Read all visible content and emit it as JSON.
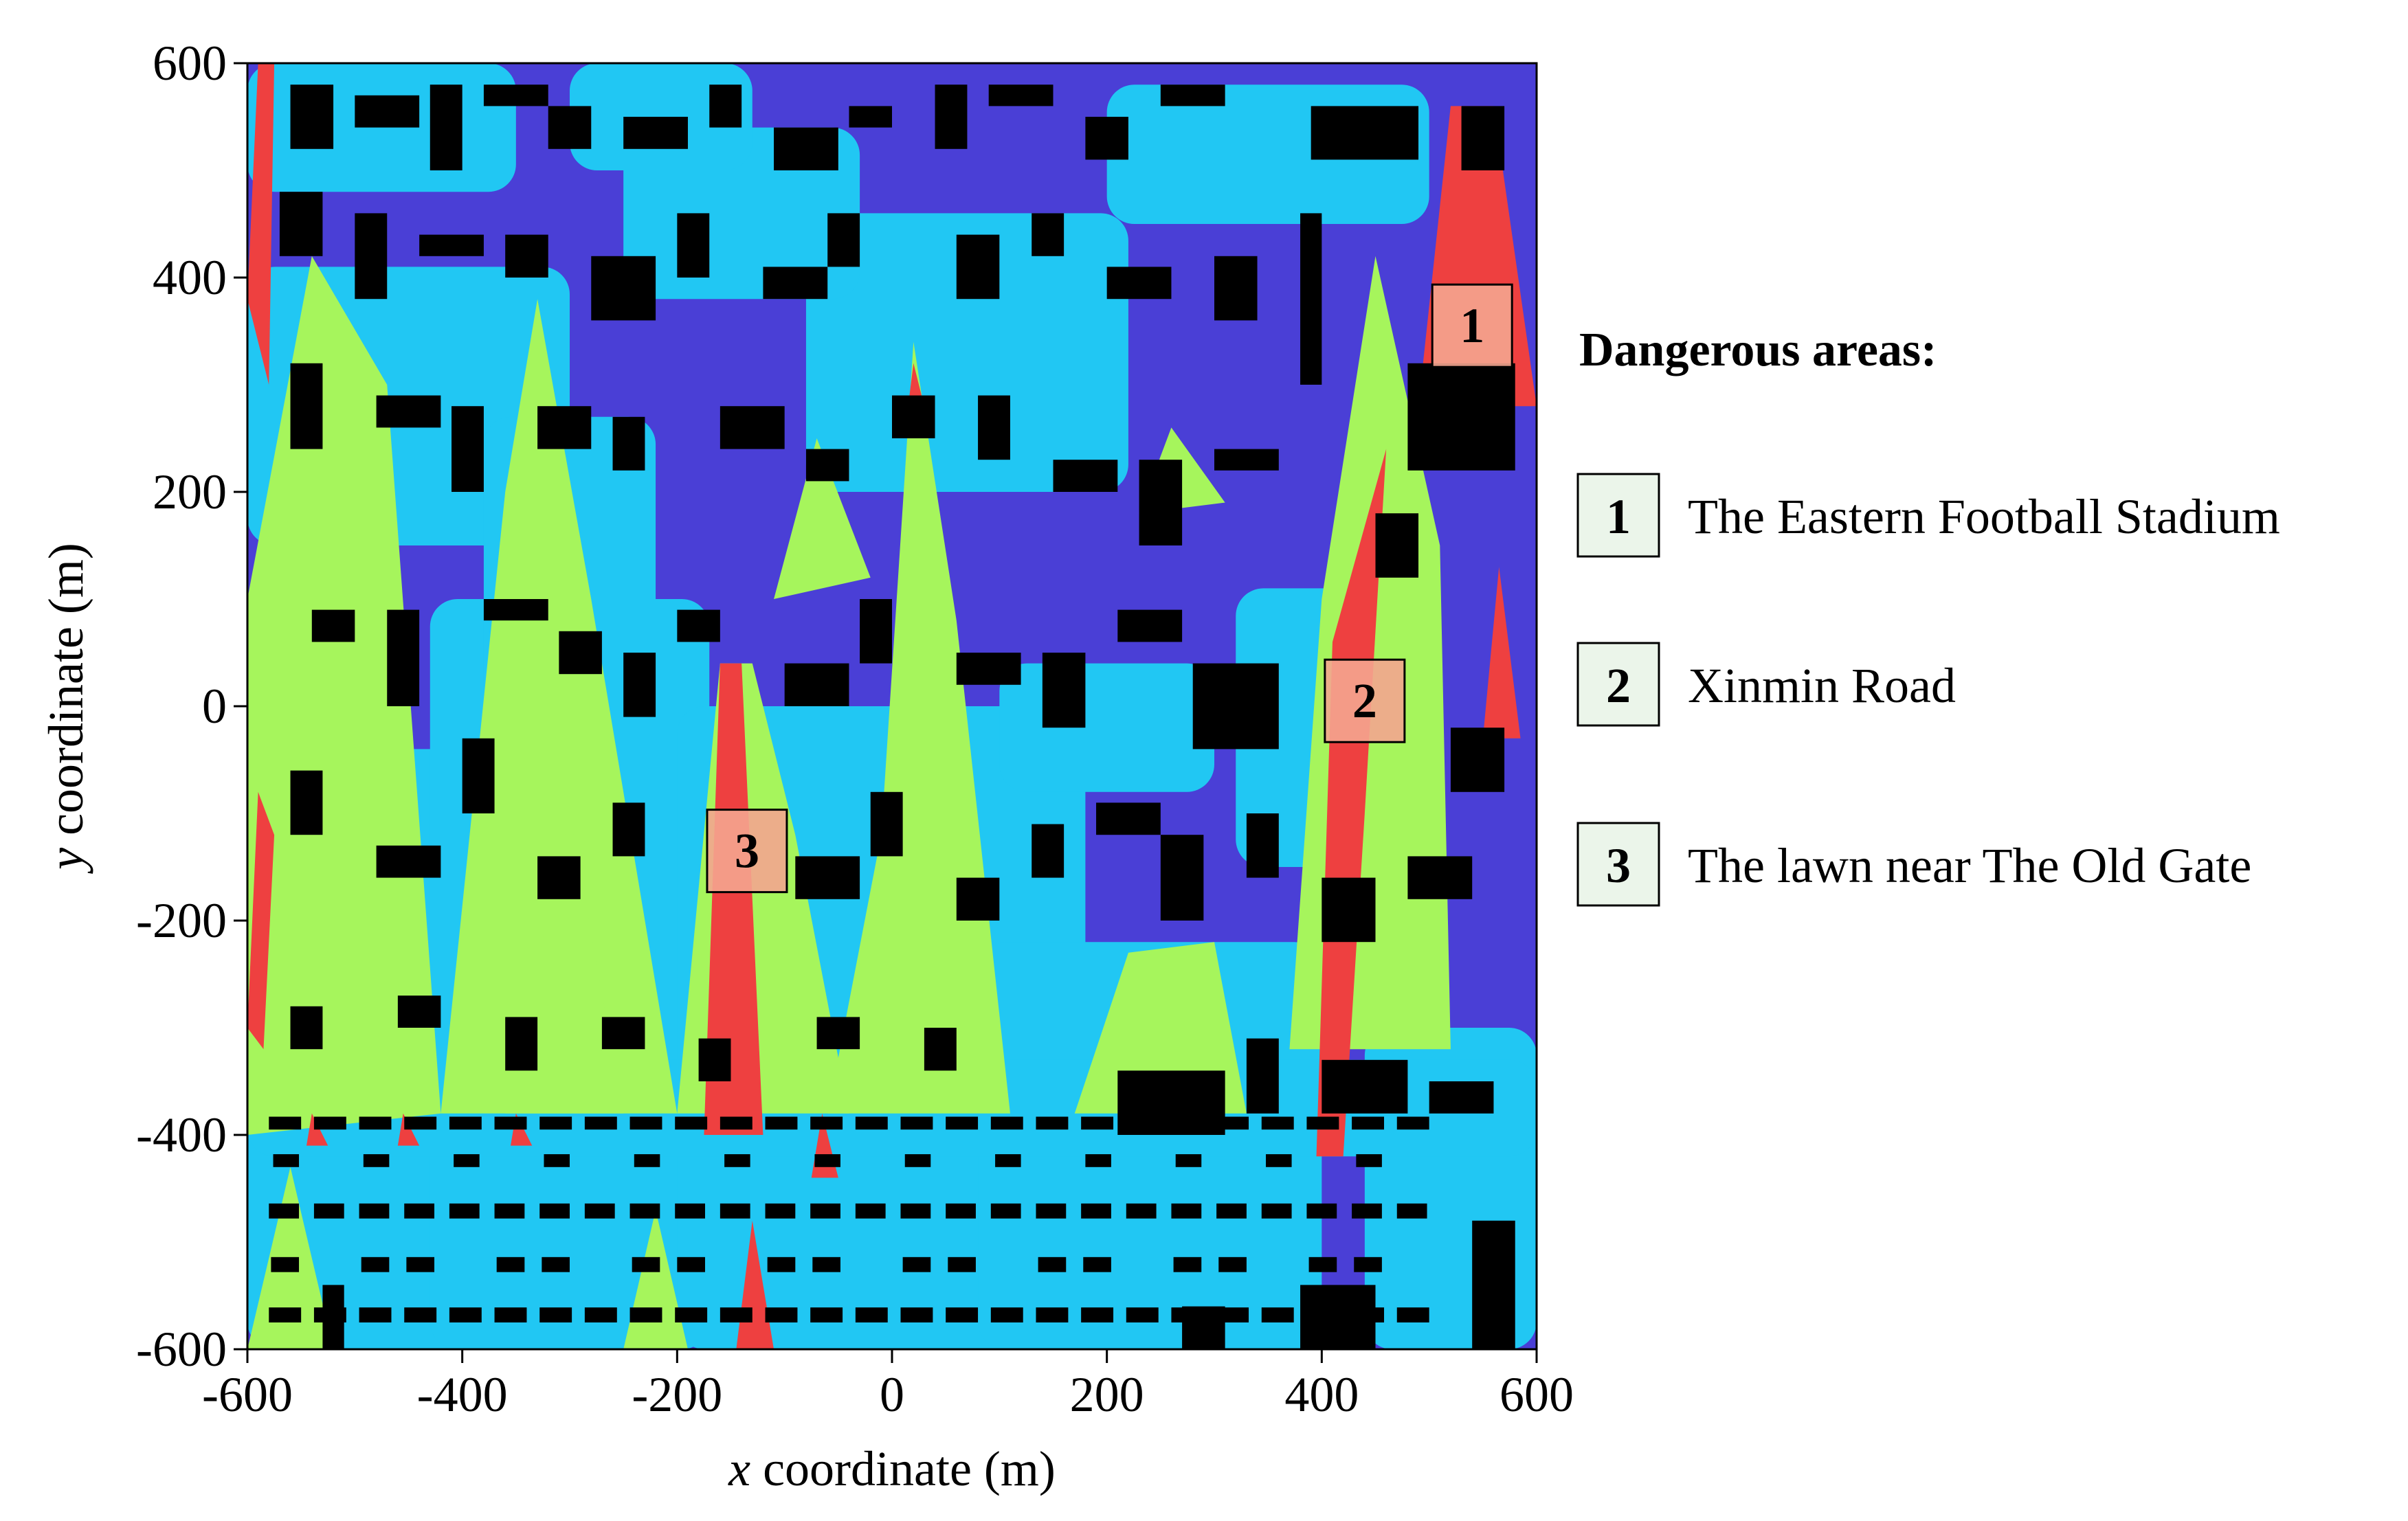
{
  "chart_data": {
    "type": "heatmap",
    "xlabel_var": "x",
    "xlabel_rest": " coordinate (m)",
    "ylabel_var": "y",
    "ylabel_rest": " coordinate (m)",
    "xlim": [
      -600,
      600
    ],
    "ylim": [
      -600,
      600
    ],
    "x_ticks": [
      -600,
      -400,
      -200,
      0,
      200,
      400,
      600
    ],
    "y_ticks": [
      -600,
      -400,
      -200,
      0,
      200,
      400,
      600
    ],
    "grid": false,
    "colors": {
      "buildings": "#000000",
      "level_low": "#4a3fd6",
      "level_mid": "#21c7f3",
      "level_high": "#a6f55c",
      "level_danger": "#ee4040",
      "marker_fill": "#f4a58f",
      "legend_box_fill": "#ebf5ea"
    },
    "markers": [
      {
        "id": "1",
        "x": 540,
        "y": 355
      },
      {
        "id": "2",
        "x": 440,
        "y": 5
      },
      {
        "id": "3",
        "x": -135,
        "y": -135
      }
    ],
    "legend": {
      "title": "Dangerous areas:",
      "placement": "right",
      "items": [
        {
          "id": "1",
          "label": "The Eastern Football Stadium"
        },
        {
          "id": "2",
          "label": "Xinmin Road"
        },
        {
          "id": "3",
          "label": "The lawn near The Old Gate"
        }
      ]
    }
  }
}
